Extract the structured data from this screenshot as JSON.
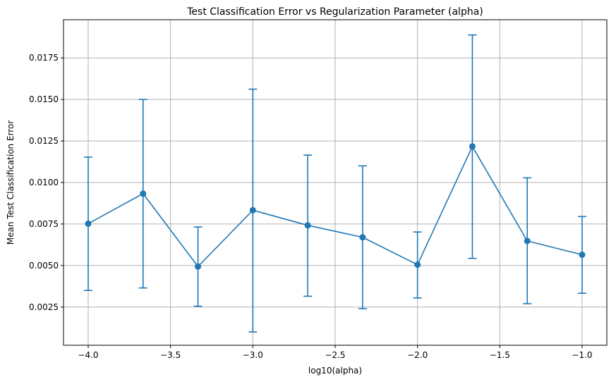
{
  "chart_data": {
    "type": "line",
    "title": "Test Classification Error vs Regularization Parameter (alpha)",
    "xlabel": "log10(alpha)",
    "ylabel": "Mean Test Classification Error",
    "xlim": [
      -4.15,
      -0.85
    ],
    "ylim": [
      0.0002,
      0.0198
    ],
    "grid": true,
    "series_color": "#1f77b4",
    "x_ticks": [
      -4.0,
      -3.5,
      -3.0,
      -2.5,
      -2.0,
      -1.5,
      -1.0
    ],
    "x_tick_labels": [
      "−4.0",
      "−3.5",
      "−3.0",
      "−2.5",
      "−2.0",
      "−1.5",
      "−1.0"
    ],
    "y_ticks": [
      0.0025,
      0.005,
      0.0075,
      0.01,
      0.0125,
      0.015,
      0.0175
    ],
    "y_tick_labels": [
      "0.0025",
      "0.0050",
      "0.0075",
      "0.0100",
      "0.0125",
      "0.0150",
      "0.0175"
    ],
    "series": [
      {
        "x": [
          -4.0,
          -3.6667,
          -3.3333,
          -3.0,
          -2.6667,
          -2.3333,
          -2.0,
          -1.6667,
          -1.3333,
          -1.0
        ],
        "y": [
          0.00752,
          0.00933,
          0.00494,
          0.00833,
          0.00742,
          0.0067,
          0.00505,
          0.01217,
          0.00648,
          0.00565
        ],
        "err_low": [
          0.0035,
          0.00365,
          0.00255,
          0.001,
          0.00315,
          0.0024,
          0.00305,
          0.00543,
          0.0027,
          0.00333
        ],
        "err_high": [
          0.01153,
          0.015,
          0.00732,
          0.01562,
          0.01165,
          0.011,
          0.00702,
          0.01888,
          0.01028,
          0.00795
        ]
      }
    ]
  }
}
